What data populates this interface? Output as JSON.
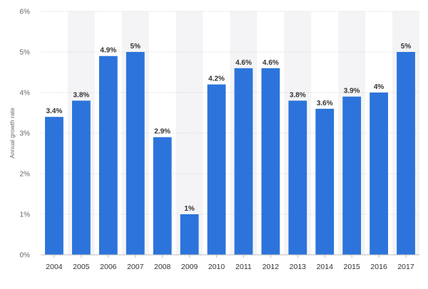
{
  "chart_data": {
    "type": "bar",
    "categories": [
      "2004",
      "2005",
      "2006",
      "2007",
      "2008",
      "2009",
      "2010",
      "2011",
      "2012",
      "2013",
      "2014",
      "2015",
      "2016",
      "2017"
    ],
    "values": [
      3.4,
      3.8,
      4.9,
      5.0,
      2.9,
      1.0,
      4.2,
      4.6,
      4.6,
      3.8,
      3.6,
      3.9,
      4.0,
      5.0
    ],
    "data_labels": [
      "3.4%",
      "3.8%",
      "4.9%",
      "5%",
      "2.9%",
      "1%",
      "4.2%",
      "4.6%",
      "4.6%",
      "3.8%",
      "3.6%",
      "3.9%",
      "4%",
      "5%"
    ],
    "title": "",
    "xlabel": "",
    "ylabel": "Annual growth rate",
    "ylim": [
      0,
      6
    ],
    "yticks": [
      0,
      1,
      2,
      3,
      4,
      5,
      6
    ],
    "ytick_labels": [
      "0%",
      "1%",
      "2%",
      "3%",
      "4%",
      "5%",
      "6%"
    ],
    "grid": true,
    "colors": {
      "bar": "#2c74db",
      "band": "#f4f4f6",
      "grid": "#d9d9d9",
      "axis": "#bdbdbd"
    }
  }
}
